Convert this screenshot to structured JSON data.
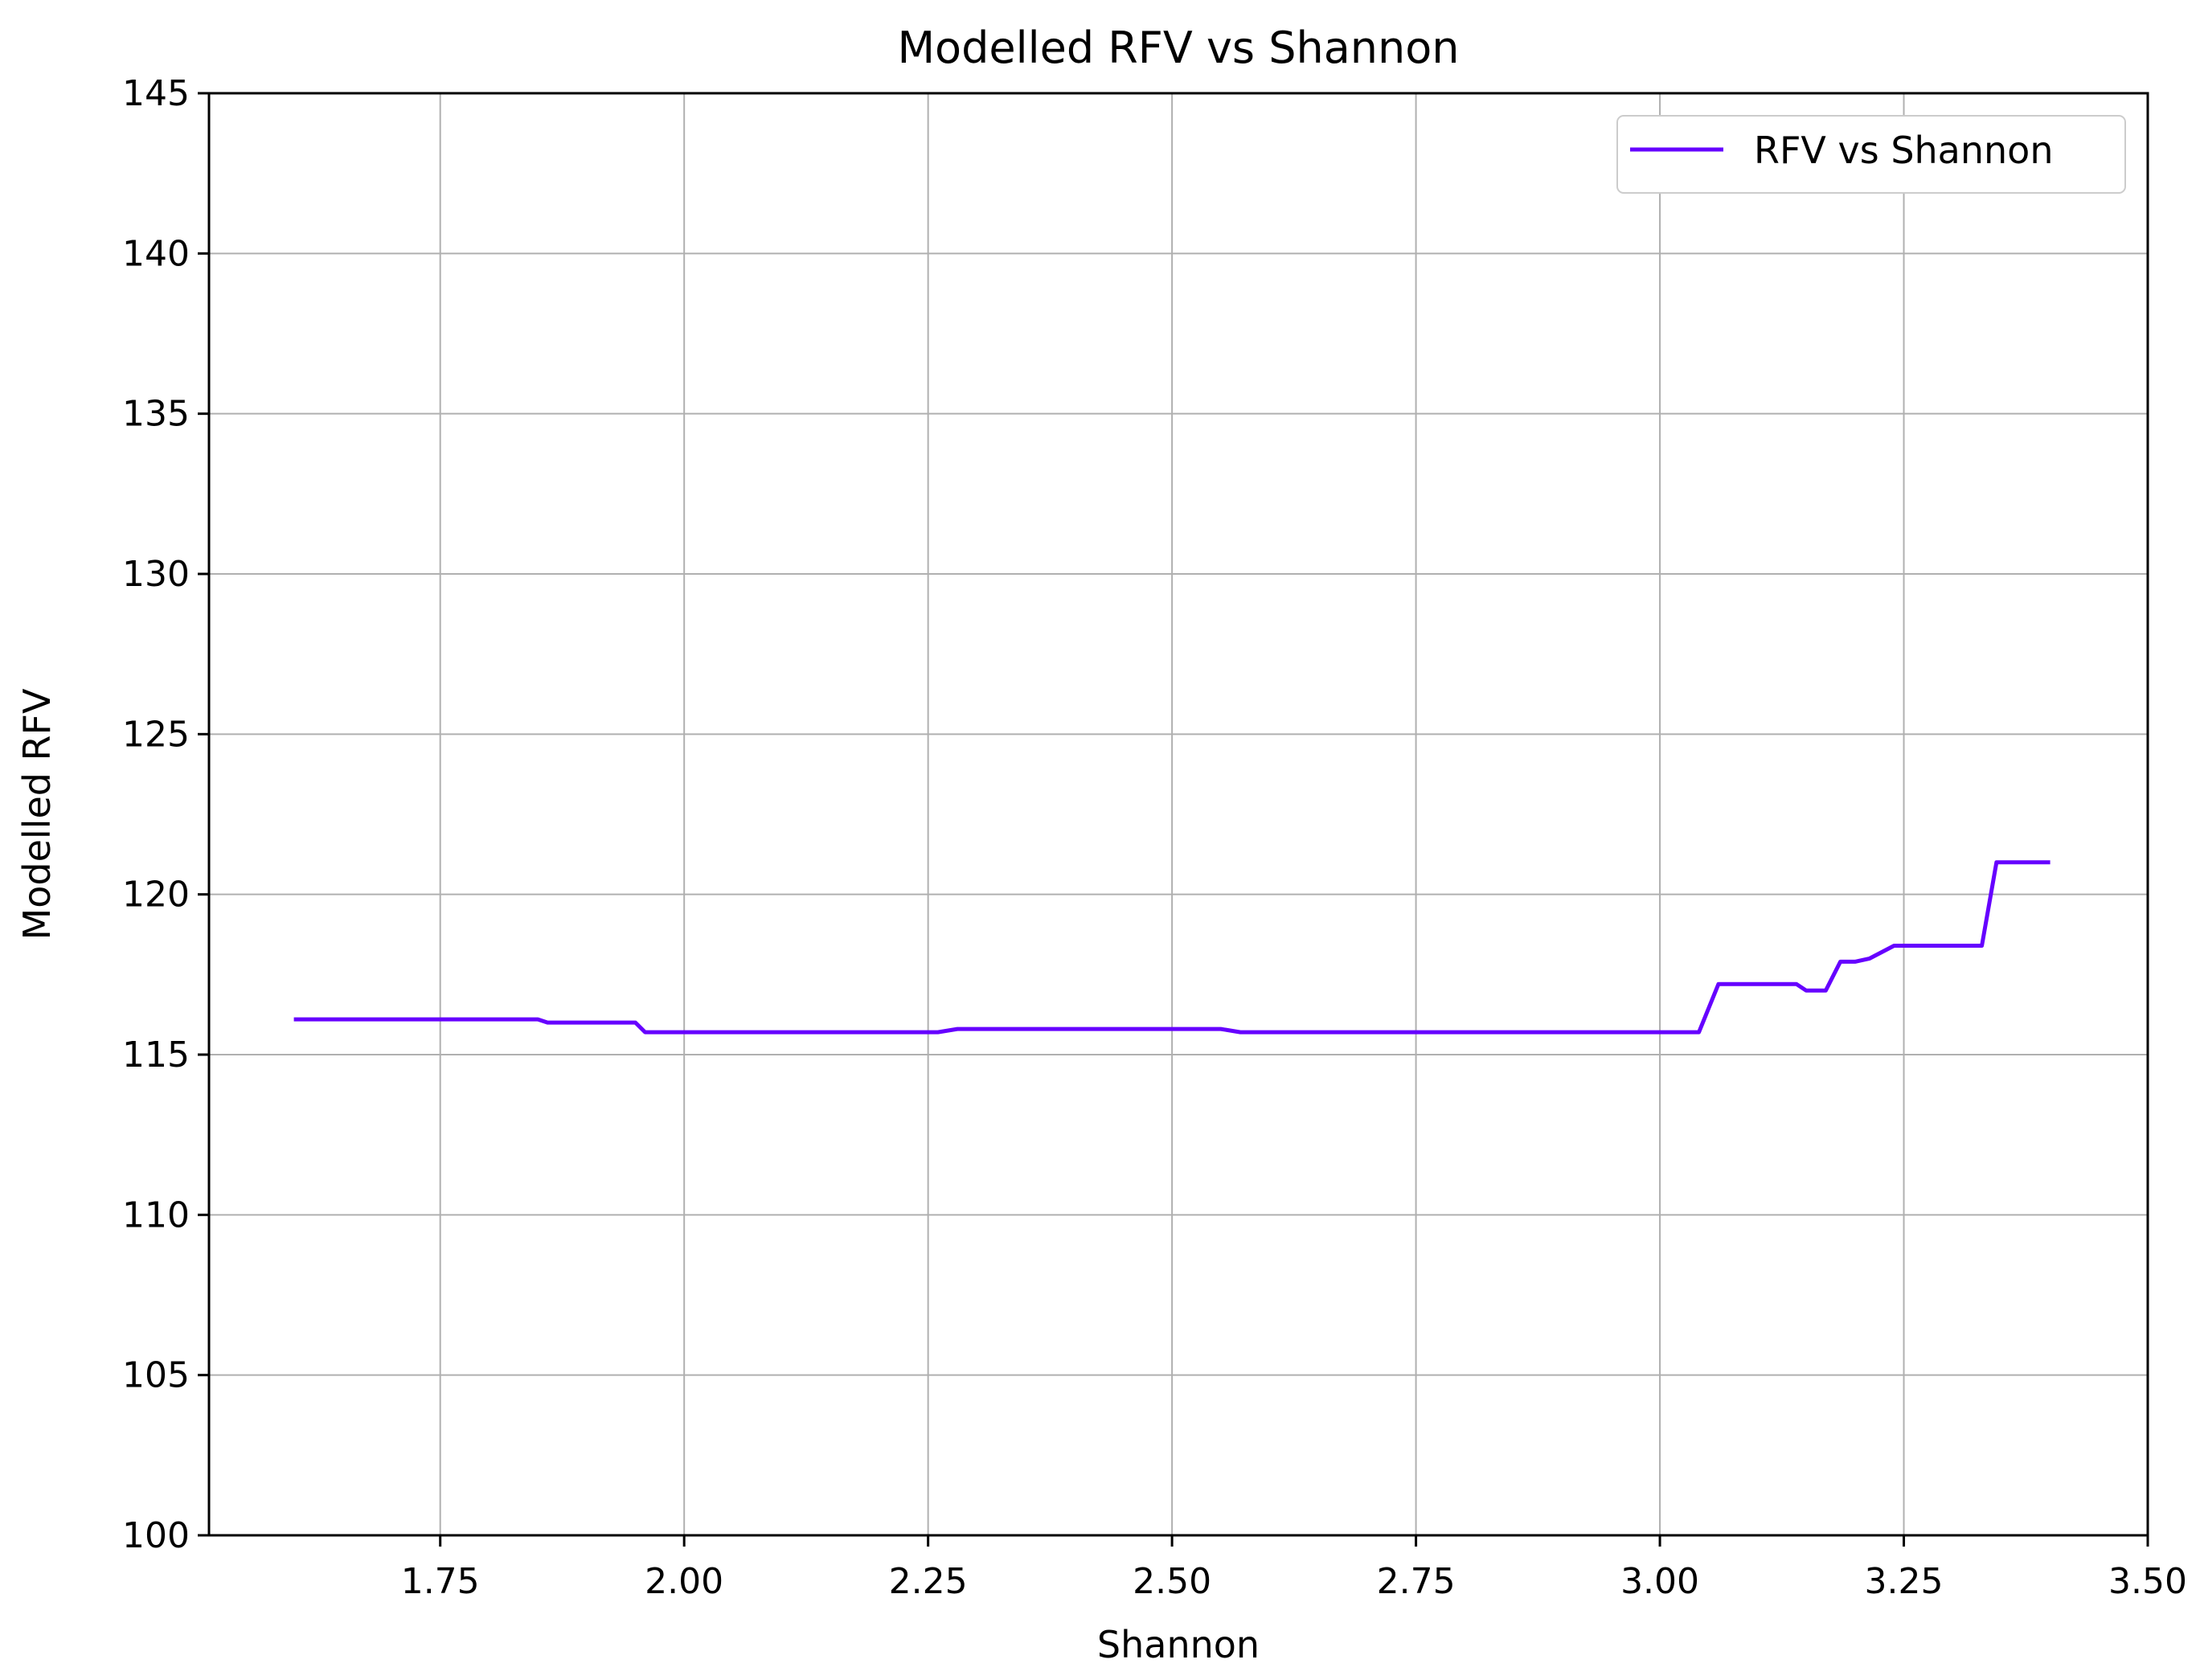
{
  "chart_data": {
    "type": "line",
    "title": "Modelled RFV vs Shannon",
    "xlabel": "Shannon",
    "ylabel": "Modelled RFV",
    "xlim": [
      1.513,
      3.5
    ],
    "ylim": [
      100,
      145
    ],
    "xticks": [
      "1.75",
      "2.00",
      "2.25",
      "2.50",
      "2.75",
      "3.00",
      "3.25",
      "3.50"
    ],
    "yticks": [
      "100",
      "105",
      "110",
      "115",
      "120",
      "125",
      "130",
      "135",
      "140",
      "145"
    ],
    "grid": true,
    "legend": {
      "position": "top-right",
      "entries": [
        "RFV vs Shannon"
      ]
    },
    "series": [
      {
        "name": "RFV vs Shannon",
        "color": "#6600ff",
        "x": [
          1.6,
          1.85,
          1.86,
          1.95,
          1.96,
          2.26,
          2.28,
          2.55,
          2.57,
          3.04,
          3.06,
          3.14,
          3.15,
          3.17,
          3.185,
          3.2,
          3.215,
          3.24,
          3.33,
          3.345,
          3.4
        ],
        "y": [
          116.1,
          116.1,
          116.0,
          116.0,
          115.7,
          115.7,
          115.8,
          115.8,
          115.7,
          115.7,
          117.2,
          117.2,
          117.0,
          117.0,
          117.9,
          117.9,
          118.0,
          118.4,
          118.4,
          121.0,
          121.0
        ]
      }
    ]
  }
}
